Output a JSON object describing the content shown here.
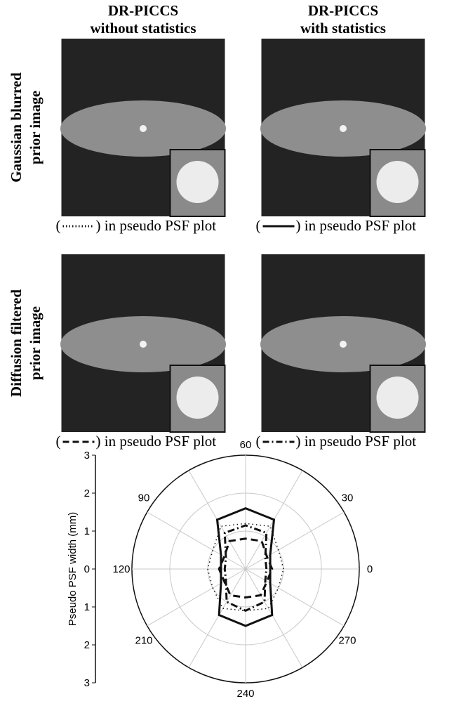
{
  "headers": [
    [
      "DR-PICCS",
      "without statistics"
    ],
    [
      "DR-PICCS",
      "with statistics"
    ]
  ],
  "row_labels": [
    [
      "Gaussian blurred",
      "prior image"
    ],
    [
      "Diffusion filtered",
      "prior image"
    ]
  ],
  "captions": [
    {
      "open": "(",
      "text": ") in pseudo PSF plot"
    },
    {
      "open": "(",
      "text": ") in pseudo PSF plot"
    },
    {
      "open": "(",
      "text": ") in pseudo PSF plot"
    },
    {
      "open": "(",
      "text": ") in pseudo PSF plot"
    }
  ],
  "chart_data": {
    "type": "polar",
    "y_label": "Pseudo PSF width (mm)",
    "ylim": [
      -3,
      3
    ],
    "yticks": [
      {
        "value": -3,
        "label": "3"
      },
      {
        "value": -2,
        "label": "2"
      },
      {
        "value": -1,
        "label": "1"
      },
      0,
      1,
      2,
      3
    ],
    "rlim": [
      0,
      3
    ],
    "rticks": [
      1,
      2
    ],
    "theta_labels": [
      0,
      30,
      60,
      90,
      120,
      210,
      240,
      270
    ],
    "theta": [
      0,
      30,
      60,
      90,
      120,
      150,
      180,
      210,
      240,
      270,
      300,
      330
    ],
    "series": [
      {
        "color": "#111111",
        "dash": "dotted",
        "values": [
          1.0,
          1.0,
          1.3,
          1.2,
          1.3,
          1.0,
          1.0,
          1.0,
          1.2,
          1.1,
          1.2,
          1.0
        ]
      },
      {
        "color": "#111111",
        "dash": "solid",
        "values": [
          0.65,
          0.75,
          1.5,
          1.6,
          1.5,
          0.75,
          0.65,
          0.75,
          1.4,
          1.5,
          1.4,
          0.75
        ]
      },
      {
        "color": "#111111",
        "dash": "dashed",
        "values": [
          0.7,
          0.65,
          0.85,
          0.8,
          0.85,
          0.65,
          0.7,
          0.65,
          0.8,
          0.75,
          0.8,
          0.65
        ]
      },
      {
        "color": "#111111",
        "dash": "dashdot",
        "values": [
          0.55,
          0.6,
          1.1,
          1.15,
          1.1,
          0.6,
          0.55,
          0.6,
          1.0,
          1.1,
          1.0,
          0.6
        ]
      }
    ]
  }
}
